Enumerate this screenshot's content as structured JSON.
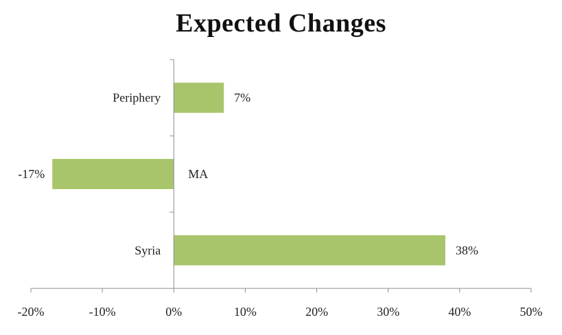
{
  "chart_data": {
    "type": "bar",
    "orientation": "horizontal",
    "title": "Expected Changes",
    "categories": [
      "Periphery",
      "MA",
      "Syria"
    ],
    "values": [
      7,
      -17,
      38
    ],
    "data_labels": [
      "7%",
      "-17%",
      "38%"
    ],
    "xlim": [
      -20,
      50
    ],
    "xticks": [
      -20,
      -10,
      0,
      10,
      20,
      30,
      40,
      50
    ],
    "xtick_labels": [
      "-20%",
      "-10%",
      "0%",
      "10%",
      "20%",
      "30%",
      "40%",
      "50%"
    ],
    "xlabel": "",
    "ylabel": "",
    "grid": false,
    "legend": "none",
    "bar_color": "#a9c56c"
  }
}
